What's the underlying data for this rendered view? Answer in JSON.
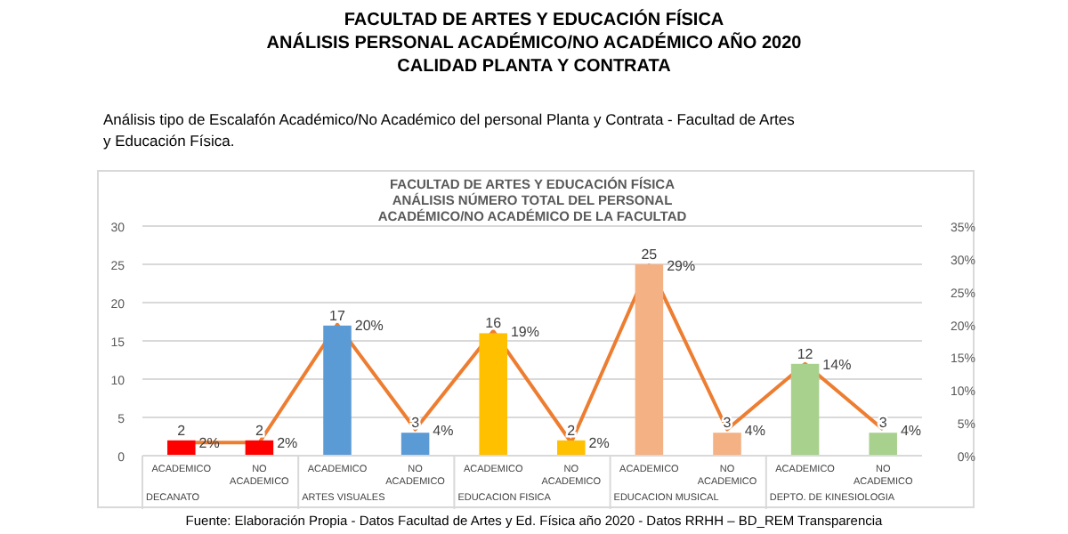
{
  "chart_data": {
    "type": "bar",
    "title": "FACULTAD DE ARTES Y EDUCACIÓN FÍSICA\nANÁLISIS PERSONAL ACADÉMICO/NO ACADÉMICO AÑO 2020\nCALIDAD PLANTA Y CONTRATA",
    "subtitle": "Análisis tipo de Escalafón Académico/No Académico del personal Planta y Contrata - Facultad de Artes\ny Educación Física.",
    "annotations": [
      "FACULTAD DE ARTES Y EDUCACIÓN FÍSICA\nANÁLISIS NÚMERO TOTAL DEL PERSONAL\nACADÉMICO/NO ACADÉMICO DE LA FACULTAD",
      "DECANATO",
      "ARTES VISUALES",
      "EDUCACION FISICA",
      "EDUCACION MUSICAL",
      "DEPTO. DE KINESIOLOGIA",
      "Fuente: Elaboración Propia - Datos Facultad de Artes y Ed. Física año 2020 - Datos RRHH – BD_REM Transparencia"
    ],
    "categories": [
      "ACADEMICO",
      "NO ACADEMICO",
      "ACADEMICO",
      "NO ACADEMICO",
      "ACADEMICO",
      "NO ACADEMICO",
      "ACADEMICO",
      "NO ACADEMICO",
      "ACADEMICO",
      "NO ACADEMICO"
    ],
    "series": [
      {
        "colors": [
          "#ff0000",
          "#ff0000",
          "#5b9bd5",
          "#5b9bd5",
          "#ffc000",
          "#ffc000",
          "#f4b183",
          "#f4b183",
          "#a9d18e",
          "#a9d18e"
        ],
        "values": [
          2,
          2,
          17,
          3,
          16,
          2,
          25,
          3,
          12,
          3
        ],
        "value_labels": [
          "2",
          "2",
          "17",
          "3",
          "16",
          "2",
          "25",
          "3",
          "12",
          "3"
        ]
      },
      {
        "type": "line",
        "axis": "y2",
        "color": "#ed7d31",
        "values": [
          2,
          2,
          20,
          4,
          19,
          2,
          29,
          4,
          14,
          4
        ],
        "value_labels": [
          "2%",
          "2%",
          "20%",
          "4%",
          "19%",
          "2%",
          "29%",
          "4%",
          "14%",
          "4%"
        ]
      }
    ],
    "ylim": [
      0,
      30
    ],
    "yticks": [
      0,
      5,
      10,
      15,
      20,
      25,
      30
    ],
    "y2lim": [
      0,
      35
    ],
    "y2ticks": [
      {
        "value": 0,
        "label": "0%"
      },
      {
        "value": 5,
        "label": "5%"
      },
      {
        "value": 10,
        "label": "10%"
      },
      {
        "value": 15,
        "label": "15%"
      },
      {
        "value": 20,
        "label": "20%"
      },
      {
        "value": 25,
        "label": "25%"
      },
      {
        "value": 30,
        "label": "30%"
      },
      {
        "value": 35,
        "label": "35%"
      }
    ],
    "grid": "y",
    "marker": "none"
  }
}
